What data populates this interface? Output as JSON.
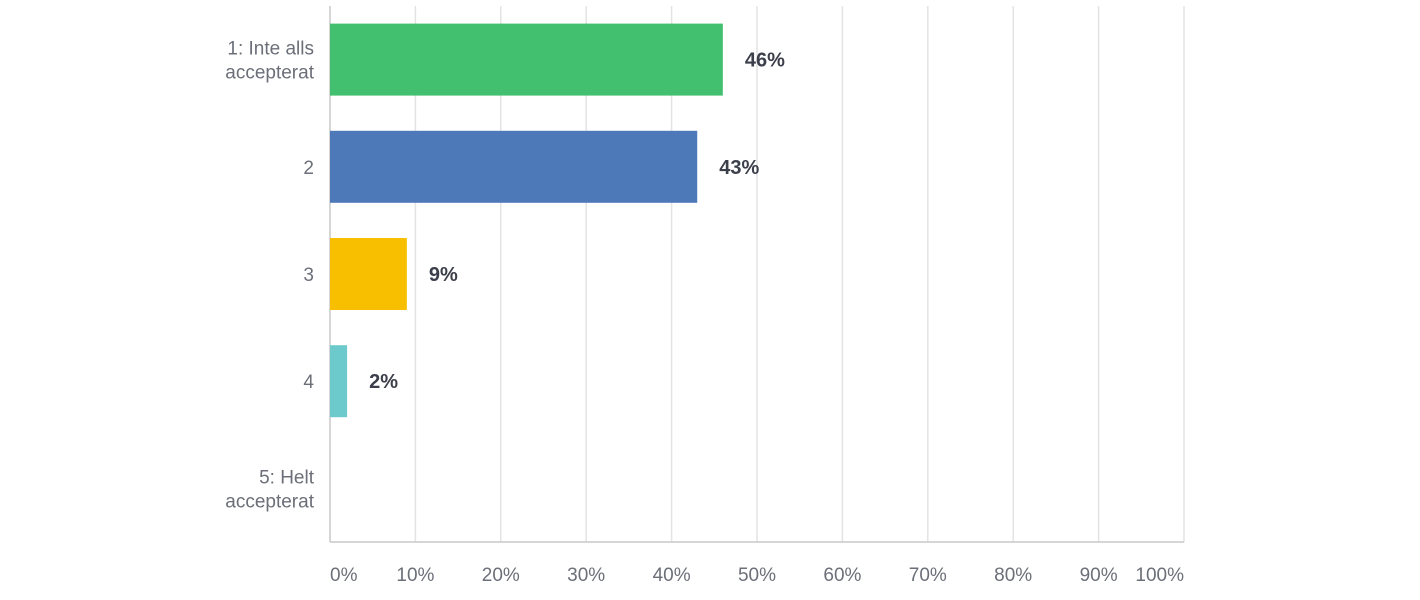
{
  "chart_data": {
    "type": "bar",
    "orientation": "horizontal",
    "title": "",
    "xlabel": "",
    "ylabel": "",
    "categories": [
      [
        "1: Inte alls",
        "accepterat"
      ],
      [
        "2"
      ],
      [
        "3"
      ],
      [
        "4"
      ],
      [
        "5: Helt",
        "accepterat"
      ]
    ],
    "values": [
      46,
      43,
      9,
      2,
      0
    ],
    "value_labels": [
      "46%",
      "43%",
      "9%",
      "2%",
      ""
    ],
    "colors": [
      "#43c06f",
      "#4e79b8",
      "#f7bf00",
      "#6cc9cc",
      "#cccccc"
    ],
    "xlim": [
      0,
      100
    ],
    "xticks": [
      "0%",
      "10%",
      "20%",
      "30%",
      "40%",
      "50%",
      "60%",
      "70%",
      "80%",
      "90%",
      "100%"
    ],
    "grid": true,
    "legend": "none"
  }
}
